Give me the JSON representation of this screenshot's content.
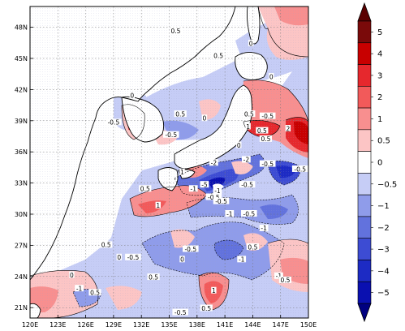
{
  "map": {
    "lon_range": [
      120,
      150
    ],
    "lat_range": [
      20,
      50
    ],
    "x_ticks": [
      "120E",
      "123E",
      "126E",
      "129E",
      "132E",
      "135E",
      "138E",
      "141E",
      "144E",
      "147E",
      "150E"
    ],
    "y_ticks": [
      "21N",
      "24N",
      "27N",
      "30N",
      "33N",
      "36N",
      "39N",
      "42N",
      "45N",
      "48N"
    ],
    "grid": "dotted",
    "land_color": "#ffffff",
    "coastline_color": "#000000",
    "contour_labels": [
      {
        "lon": 135.7,
        "lat": 47.6,
        "text": "0.5"
      },
      {
        "lon": 140.3,
        "lat": 45.2,
        "text": "0.5"
      },
      {
        "lon": 143.8,
        "lat": 46.4,
        "text": "0"
      },
      {
        "lon": 146.0,
        "lat": 43.2,
        "text": "0"
      },
      {
        "lon": 131.0,
        "lat": 41.4,
        "text": "0"
      },
      {
        "lon": 129.0,
        "lat": 38.8,
        "text": "-0.5"
      },
      {
        "lon": 136.2,
        "lat": 39.6,
        "text": "0.5"
      },
      {
        "lon": 135.2,
        "lat": 37.6,
        "text": "-0.5"
      },
      {
        "lon": 138.8,
        "lat": 39.2,
        "text": "0"
      },
      {
        "lon": 143.6,
        "lat": 39.6,
        "text": "0.5"
      },
      {
        "lon": 145.6,
        "lat": 39.4,
        "text": "-0.5"
      },
      {
        "lon": 143.5,
        "lat": 38.4,
        "text": "1"
      },
      {
        "lon": 145.0,
        "lat": 38.0,
        "text": "0.5"
      },
      {
        "lon": 145.4,
        "lat": 37.2,
        "text": "0.5"
      },
      {
        "lon": 147.8,
        "lat": 38.2,
        "text": "2"
      },
      {
        "lon": 142.5,
        "lat": 36.6,
        "text": "0"
      },
      {
        "lon": 139.8,
        "lat": 34.9,
        "text": "-2"
      },
      {
        "lon": 143.3,
        "lat": 35.2,
        "text": "-2"
      },
      {
        "lon": 136.4,
        "lat": 34.0,
        "text": "1"
      },
      {
        "lon": 145.6,
        "lat": 34.8,
        "text": "-0.5"
      },
      {
        "lon": 149.1,
        "lat": 34.3,
        "text": "-0.5"
      },
      {
        "lon": 138.8,
        "lat": 32.8,
        "text": "-5"
      },
      {
        "lon": 137.6,
        "lat": 32.4,
        "text": "-1"
      },
      {
        "lon": 140.2,
        "lat": 32.2,
        "text": "-1"
      },
      {
        "lon": 132.4,
        "lat": 32.4,
        "text": "0.5"
      },
      {
        "lon": 133.8,
        "lat": 30.8,
        "text": "1"
      },
      {
        "lon": 139.8,
        "lat": 31.6,
        "text": "-0.5"
      },
      {
        "lon": 140.6,
        "lat": 31.2,
        "text": "-0.5"
      },
      {
        "lon": 143.4,
        "lat": 32.8,
        "text": "-0.5"
      },
      {
        "lon": 141.5,
        "lat": 30.0,
        "text": "-1"
      },
      {
        "lon": 143.6,
        "lat": 30.0,
        "text": "-0.5"
      },
      {
        "lon": 145.2,
        "lat": 28.6,
        "text": "-1"
      },
      {
        "lon": 142.8,
        "lat": 25.6,
        "text": "-1"
      },
      {
        "lon": 144.0,
        "lat": 26.8,
        "text": "0.5"
      },
      {
        "lon": 137.3,
        "lat": 26.6,
        "text": "-0.5"
      },
      {
        "lon": 136.4,
        "lat": 25.6,
        "text": "0"
      },
      {
        "lon": 131.1,
        "lat": 25.8,
        "text": "-0.5"
      },
      {
        "lon": 128.2,
        "lat": 27.0,
        "text": "0.5"
      },
      {
        "lon": 129.6,
        "lat": 25.8,
        "text": "0"
      },
      {
        "lon": 125.3,
        "lat": 22.8,
        "text": "-1"
      },
      {
        "lon": 124.5,
        "lat": 24.1,
        "text": "0"
      },
      {
        "lon": 127.0,
        "lat": 22.4,
        "text": "0.5"
      },
      {
        "lon": 146.8,
        "lat": 24.0,
        "text": "-1"
      },
      {
        "lon": 147.5,
        "lat": 23.6,
        "text": "0.5"
      },
      {
        "lon": 139.8,
        "lat": 22.6,
        "text": "1"
      },
      {
        "lon": 139.0,
        "lat": 20.9,
        "text": "0.5"
      },
      {
        "lon": 136.2,
        "lat": 20.5,
        "text": "-0.5"
      },
      {
        "lon": 133.3,
        "lat": 23.9,
        "text": "0.5"
      }
    ]
  },
  "colorbar": {
    "labels": [
      "5",
      "4",
      "3",
      "2",
      "1",
      "0.5",
      "0",
      "−0.5",
      "−1",
      "−2",
      "−3",
      "−4",
      "−5"
    ],
    "colors": [
      "#7a0a0a",
      "#c80000",
      "#e6282d",
      "#f25a5a",
      "#f88f8f",
      "#fcc5c5",
      "#ffffff",
      "#c6cdf6",
      "#8f9cea",
      "#6272dd",
      "#3d4cd3",
      "#1d2bc4",
      "#0a10b0"
    ],
    "top_arrow_color": "#5a0000",
    "bottom_arrow_color": "#000080"
  }
}
